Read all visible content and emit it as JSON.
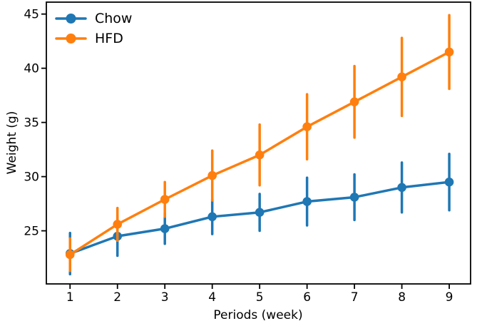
{
  "chart_data": {
    "type": "line",
    "title": "",
    "xlabel": "Periods (week)",
    "ylabel": "Weight (g)",
    "x": [
      1,
      2,
      3,
      4,
      5,
      6,
      7,
      8,
      9
    ],
    "series": [
      {
        "name": "Chow",
        "color": "#1f77b4",
        "values": [
          22.9,
          24.5,
          25.2,
          26.3,
          26.7,
          27.7,
          28.1,
          29.0,
          29.5
        ],
        "errors": [
          1.9,
          1.8,
          1.4,
          1.6,
          1.7,
          2.2,
          2.1,
          2.3,
          2.6
        ]
      },
      {
        "name": "HFD",
        "color": "#ff7f0e",
        "values": [
          22.8,
          25.6,
          27.9,
          30.1,
          32.0,
          34.6,
          36.9,
          39.2,
          41.5
        ],
        "errors": [
          1.5,
          1.5,
          1.6,
          2.3,
          2.8,
          3.0,
          3.3,
          3.6,
          3.4
        ]
      }
    ],
    "x_ticks": [
      "1",
      "2",
      "3",
      "4",
      "5",
      "6",
      "7",
      "8",
      "9"
    ],
    "y_ticks": [
      "25",
      "30",
      "35",
      "40",
      "45"
    ],
    "x_tick_values": [
      1,
      2,
      3,
      4,
      5,
      6,
      7,
      8,
      9
    ],
    "y_tick_values": [
      25,
      30,
      35,
      40,
      45
    ],
    "xlim": [
      0.5,
      9.45
    ],
    "ylim": [
      20.1,
      46.1
    ],
    "grid": false,
    "legend_position": "upper-left",
    "error_bars": true,
    "marker": "circle",
    "axis_color": "#000000",
    "background_color": "#ffffff"
  }
}
